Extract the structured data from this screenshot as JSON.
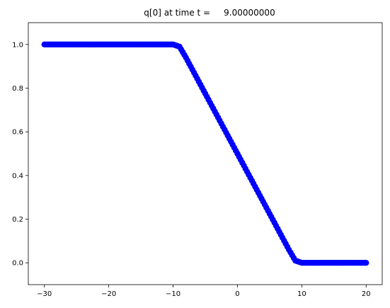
{
  "chart_data": {
    "type": "scatter",
    "title": "q[0] at time t =     9.00000000",
    "xlabel": "",
    "ylabel": "",
    "xlim": [
      -32.5,
      22.5
    ],
    "ylim": [
      -0.1,
      1.1
    ],
    "x_ticks": [
      -30,
      -20,
      -10,
      0,
      10,
      20
    ],
    "x_tick_labels": [
      "−30",
      "−20",
      "−10",
      "0",
      "10",
      "20"
    ],
    "y_ticks": [
      0.0,
      0.2,
      0.4,
      0.6,
      0.8,
      1.0
    ],
    "y_tick_labels": [
      "0.0",
      "0.2",
      "0.4",
      "0.6",
      "0.8",
      "1.0"
    ],
    "grid": false,
    "legend": "none",
    "marker_color": "#0000ff",
    "series": [
      {
        "x_range": [
          -30,
          20
        ],
        "step": 0.25,
        "profile": [
          {
            "x": -30,
            "y": 1.0
          },
          {
            "x": -10,
            "y": 1.0
          },
          {
            "x": -9,
            "y": 0.99
          },
          {
            "x": -8,
            "y": 0.94
          },
          {
            "x": 8,
            "y": 0.06
          },
          {
            "x": 9,
            "y": 0.01
          },
          {
            "x": 10,
            "y": 0.0
          },
          {
            "x": 20,
            "y": 0.0
          }
        ]
      }
    ]
  }
}
